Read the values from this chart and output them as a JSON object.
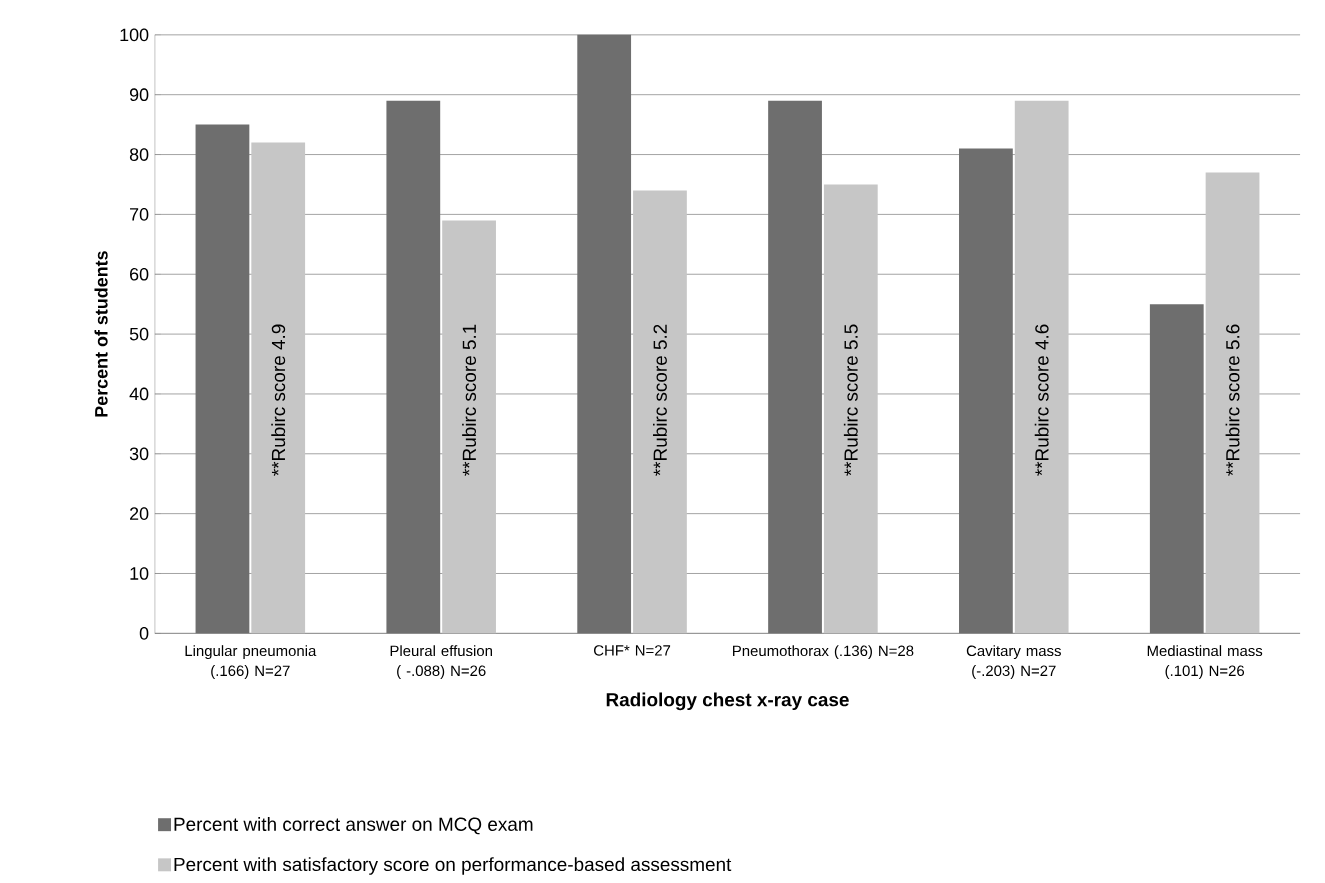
{
  "chart_data": {
    "type": "bar",
    "xlabel": "Radiology chest x-ray case",
    "ylabel": "Percent of students",
    "categories": [
      "Lingular pneumonia (.166) N=27",
      "Pleural effusion ( -.088) N=26",
      "CHF* N=27",
      "Pneumothorax (.136) N=28",
      "Cavitary mass (-.203) N=27",
      "Mediastinal mass (.101) N=26"
    ],
    "series": [
      {
        "name": "Percent with correct answer on MCQ exam",
        "color": "#6e6e6e",
        "values": [
          85,
          89,
          100,
          89,
          81,
          55
        ]
      },
      {
        "name": "Percent with satisfactory score on performance-based assessment",
        "color": "#c6c6c6",
        "values": [
          82,
          69,
          74,
          75,
          89,
          77
        ]
      }
    ],
    "annotations": [
      {
        "text": "**Rubirc score 4.9",
        "x": "Lingular pneumonia (.166) N=27",
        "y": 39
      },
      {
        "text": "**Rubirc score 5.1",
        "x": "Pleural effusion ( -.088) N=26",
        "y": 39
      },
      {
        "text": "**Rubirc score 5.2",
        "x": "CHF* N=27",
        "y": 39
      },
      {
        "text": "**Rubirc score 5.5",
        "x": "Pneumothorax (.136) N=28",
        "y": 39
      },
      {
        "text": "**Rubirc score 4.6",
        "x": "Cavitary mass (-.203) N=27",
        "y": 39
      },
      {
        "text": "**Rubirc score 5.6",
        "x": "Mediastinal mass (.101) N=26",
        "y": 39
      }
    ],
    "ylim": [
      0,
      100
    ],
    "yticks": [
      0,
      10,
      20,
      30,
      40,
      50,
      60,
      70,
      80,
      90,
      100
    ],
    "grid": "y",
    "legend": "bottom"
  }
}
